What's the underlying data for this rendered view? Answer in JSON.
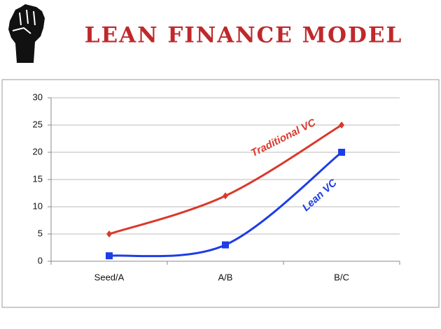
{
  "chart_data": {
    "type": "line",
    "title": "LEAN FINANCE MODEL",
    "categories": [
      "Seed/A",
      "A/B",
      "B/C"
    ],
    "series": [
      {
        "name": "Traditional VC",
        "color": "#d9392b",
        "marker": "diamond",
        "values": [
          5,
          12,
          25
        ]
      },
      {
        "name": "Lean VC",
        "color": "#1d3de6",
        "marker": "square",
        "values": [
          1,
          3,
          20
        ]
      }
    ],
    "ylim": [
      0,
      30
    ],
    "yticks": [
      0,
      5,
      10,
      15,
      20,
      25,
      30
    ],
    "grid": true,
    "smooth": true
  }
}
